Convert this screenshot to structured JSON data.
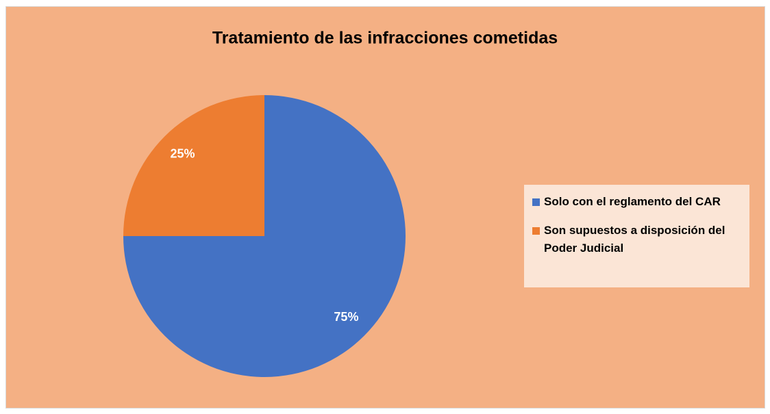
{
  "chart_data": {
    "type": "pie",
    "title": "Tratamiento de las infracciones cometidas",
    "categories": [
      "Solo con el reglamento del CAR",
      "Son supuestos a disposición del Poder Judicial"
    ],
    "values": [
      75,
      25
    ],
    "value_labels": [
      "75%",
      "25%"
    ],
    "colors": [
      "#4472c4",
      "#ed7d31"
    ],
    "legend": "right"
  }
}
